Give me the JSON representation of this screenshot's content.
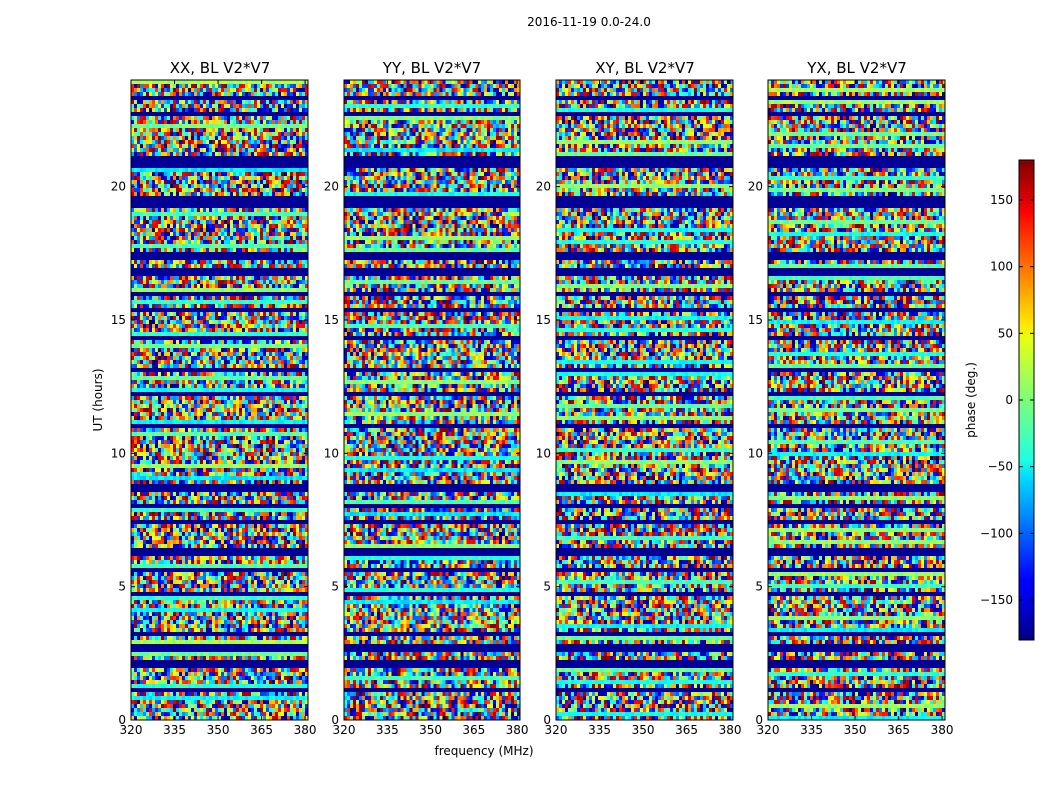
{
  "chart_data": {
    "type": "heatmap",
    "suptitle": "2016-11-19 0.0-24.0",
    "xlabel": "frequency (MHz)",
    "ylabel": "UT (hours)",
    "xlim": [
      320,
      381
    ],
    "ylim": [
      0,
      24
    ],
    "xticks": [
      320,
      335,
      350,
      365,
      380
    ],
    "yticks": [
      0,
      5,
      10,
      15,
      20
    ],
    "panels": [
      {
        "title": "XX, BL V2*V7"
      },
      {
        "title": "YY, BL V2*V7"
      },
      {
        "title": "XY, BL V2*V7"
      },
      {
        "title": "YX, BL V2*V7"
      }
    ],
    "colorbar": {
      "label": "phase (deg.)",
      "range": [
        -180,
        180
      ],
      "ticks": [
        -150,
        -100,
        -50,
        0,
        50,
        100,
        150
      ],
      "tick_labels": [
        "−150",
        "−100",
        "−50",
        "0",
        "50",
        "100",
        "150"
      ],
      "colormap": "jet"
    },
    "flagged_bands_hours": [
      [
        23.2,
        23.4
      ],
      [
        22.6,
        22.8
      ],
      [
        22.0,
        22.1
      ],
      [
        20.7,
        21.1
      ],
      [
        19.2,
        19.6
      ],
      [
        17.2,
        17.6
      ],
      [
        16.6,
        17.0
      ],
      [
        15.9,
        16.1
      ],
      [
        15.3,
        15.5
      ],
      [
        14.2,
        14.4
      ],
      [
        13.0,
        13.2
      ],
      [
        12.1,
        12.3
      ],
      [
        10.9,
        11.1
      ],
      [
        10.3,
        10.4
      ],
      [
        8.6,
        8.8
      ],
      [
        7.9,
        8.1
      ],
      [
        7.3,
        7.5
      ],
      [
        6.1,
        6.4
      ],
      [
        5.5,
        5.7
      ],
      [
        4.6,
        4.8
      ],
      [
        3.2,
        3.3
      ],
      [
        2.6,
        2.8
      ],
      [
        2.0,
        2.2
      ],
      [
        1.0,
        1.2
      ]
    ]
  }
}
